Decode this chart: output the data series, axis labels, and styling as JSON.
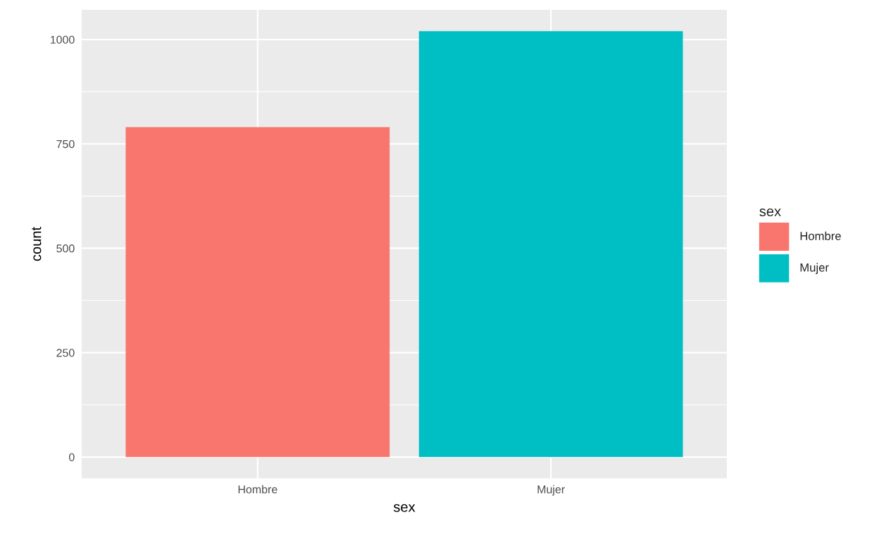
{
  "chart_data": {
    "type": "bar",
    "stacked": true,
    "xlabel": "sex",
    "ylabel": "count",
    "legend_title": "sex",
    "categories": [
      "Hombre",
      "Mujer"
    ],
    "series": [
      {
        "name": "Hombre",
        "color": "#f8766d",
        "values": [
          790,
          null
        ]
      },
      {
        "name": "Mujer",
        "color": "#00bfc4",
        "values": [
          null,
          1020
        ]
      }
    ],
    "ylim": [
      -51,
      1071
    ],
    "yticks": [
      0,
      250,
      500,
      750,
      1000
    ],
    "grid": true,
    "legend": "right"
  }
}
